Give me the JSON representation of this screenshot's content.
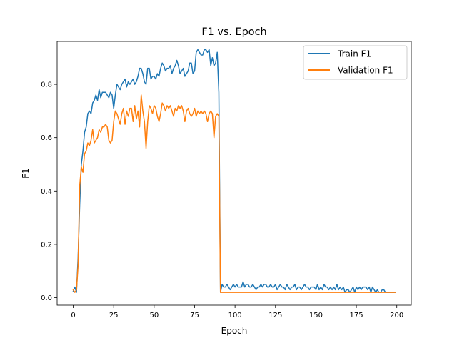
{
  "chart_data": {
    "type": "line",
    "title": "F1 vs. Epoch",
    "xlabel": "Epoch",
    "ylabel": "F1",
    "xlim": [
      -9.95,
      208.95
    ],
    "ylim": [
      -0.028,
      0.961
    ],
    "xticks": [
      0,
      25,
      50,
      75,
      100,
      125,
      150,
      175,
      200
    ],
    "yticks": [
      0.0,
      0.2,
      0.4,
      0.6,
      0.8
    ],
    "ytick_labels": [
      "0.0",
      "0.2",
      "0.4",
      "0.6",
      "0.8"
    ],
    "grid": false,
    "legend_position": "top-right",
    "colors": {
      "train": "#1f77b4",
      "validation": "#ff7f0e"
    },
    "series": [
      {
        "name": "Train F1",
        "points": [
          [
            0,
            0.025
          ],
          [
            1,
            0.04
          ],
          [
            2,
            0.02
          ],
          [
            3,
            0.15
          ],
          [
            4,
            0.35
          ],
          [
            5,
            0.5
          ],
          [
            6,
            0.55
          ],
          [
            7,
            0.62
          ],
          [
            8,
            0.64
          ],
          [
            9,
            0.69
          ],
          [
            10,
            0.7
          ],
          [
            11,
            0.69
          ],
          [
            12,
            0.73
          ],
          [
            13,
            0.74
          ],
          [
            14,
            0.76
          ],
          [
            15,
            0.74
          ],
          [
            16,
            0.78
          ],
          [
            17,
            0.75
          ],
          [
            18,
            0.77
          ],
          [
            19,
            0.77
          ],
          [
            20,
            0.77
          ],
          [
            21,
            0.76
          ],
          [
            22,
            0.75
          ],
          [
            23,
            0.77
          ],
          [
            24,
            0.76
          ],
          [
            25,
            0.71
          ],
          [
            26,
            0.76
          ],
          [
            27,
            0.8
          ],
          [
            28,
            0.79
          ],
          [
            29,
            0.78
          ],
          [
            30,
            0.8
          ],
          [
            31,
            0.81
          ],
          [
            32,
            0.82
          ],
          [
            33,
            0.79
          ],
          [
            34,
            0.81
          ],
          [
            35,
            0.8
          ],
          [
            36,
            0.81
          ],
          [
            37,
            0.82
          ],
          [
            38,
            0.8
          ],
          [
            39,
            0.81
          ],
          [
            40,
            0.83
          ],
          [
            41,
            0.86
          ],
          [
            42,
            0.86
          ],
          [
            43,
            0.84
          ],
          [
            44,
            0.81
          ],
          [
            45,
            0.8
          ],
          [
            46,
            0.86
          ],
          [
            47,
            0.86
          ],
          [
            48,
            0.82
          ],
          [
            49,
            0.83
          ],
          [
            50,
            0.83
          ],
          [
            51,
            0.82
          ],
          [
            52,
            0.84
          ],
          [
            53,
            0.83
          ],
          [
            54,
            0.86
          ],
          [
            55,
            0.88
          ],
          [
            56,
            0.87
          ],
          [
            57,
            0.85
          ],
          [
            58,
            0.86
          ],
          [
            59,
            0.86
          ],
          [
            60,
            0.87
          ],
          [
            61,
            0.84
          ],
          [
            62,
            0.86
          ],
          [
            63,
            0.87
          ],
          [
            64,
            0.89
          ],
          [
            65,
            0.87
          ],
          [
            66,
            0.84
          ],
          [
            67,
            0.85
          ],
          [
            68,
            0.86
          ],
          [
            69,
            0.83
          ],
          [
            70,
            0.84
          ],
          [
            71,
            0.85
          ],
          [
            72,
            0.88
          ],
          [
            73,
            0.88
          ],
          [
            74,
            0.84
          ],
          [
            75,
            0.85
          ],
          [
            76,
            0.92
          ],
          [
            77,
            0.93
          ],
          [
            78,
            0.92
          ],
          [
            79,
            0.91
          ],
          [
            80,
            0.91
          ],
          [
            81,
            0.93
          ],
          [
            82,
            0.93
          ],
          [
            83,
            0.92
          ],
          [
            84,
            0.93
          ],
          [
            85,
            0.87
          ],
          [
            86,
            0.9
          ],
          [
            87,
            0.87
          ],
          [
            88,
            0.88
          ],
          [
            89,
            0.92
          ],
          [
            90,
            0.77
          ],
          [
            91,
            0.02
          ],
          [
            92,
            0.05
          ],
          [
            93,
            0.04
          ],
          [
            94,
            0.04
          ],
          [
            95,
            0.05
          ],
          [
            96,
            0.04
          ],
          [
            97,
            0.03
          ],
          [
            98,
            0.04
          ],
          [
            99,
            0.05
          ],
          [
            100,
            0.04
          ],
          [
            101,
            0.05
          ],
          [
            102,
            0.04
          ],
          [
            103,
            0.04
          ],
          [
            104,
            0.04
          ],
          [
            105,
            0.06
          ],
          [
            106,
            0.04
          ],
          [
            107,
            0.05
          ],
          [
            108,
            0.05
          ],
          [
            109,
            0.04
          ],
          [
            110,
            0.04
          ],
          [
            111,
            0.05
          ],
          [
            112,
            0.04
          ],
          [
            113,
            0.03
          ],
          [
            114,
            0.04
          ],
          [
            115,
            0.04
          ],
          [
            116,
            0.05
          ],
          [
            117,
            0.04
          ],
          [
            118,
            0.05
          ],
          [
            119,
            0.05
          ],
          [
            120,
            0.04
          ],
          [
            121,
            0.04
          ],
          [
            122,
            0.05
          ],
          [
            123,
            0.04
          ],
          [
            124,
            0.04
          ],
          [
            125,
            0.05
          ],
          [
            126,
            0.03
          ],
          [
            127,
            0.04
          ],
          [
            128,
            0.05
          ],
          [
            129,
            0.04
          ],
          [
            130,
            0.04
          ],
          [
            131,
            0.03
          ],
          [
            132,
            0.05
          ],
          [
            133,
            0.04
          ],
          [
            134,
            0.03
          ],
          [
            135,
            0.04
          ],
          [
            136,
            0.04
          ],
          [
            137,
            0.05
          ],
          [
            138,
            0.03
          ],
          [
            139,
            0.04
          ],
          [
            140,
            0.04
          ],
          [
            141,
            0.03
          ],
          [
            142,
            0.04
          ],
          [
            143,
            0.05
          ],
          [
            144,
            0.04
          ],
          [
            145,
            0.04
          ],
          [
            146,
            0.03
          ],
          [
            147,
            0.04
          ],
          [
            148,
            0.04
          ],
          [
            149,
            0.04
          ],
          [
            150,
            0.03
          ],
          [
            151,
            0.05
          ],
          [
            152,
            0.03
          ],
          [
            153,
            0.04
          ],
          [
            154,
            0.03
          ],
          [
            155,
            0.05
          ],
          [
            156,
            0.04
          ],
          [
            157,
            0.04
          ],
          [
            158,
            0.03
          ],
          [
            159,
            0.04
          ],
          [
            160,
            0.03
          ],
          [
            161,
            0.04
          ],
          [
            162,
            0.03
          ],
          [
            163,
            0.05
          ],
          [
            164,
            0.03
          ],
          [
            165,
            0.04
          ],
          [
            166,
            0.03
          ],
          [
            167,
            0.04
          ],
          [
            168,
            0.02
          ],
          [
            169,
            0.03
          ],
          [
            170,
            0.03
          ],
          [
            171,
            0.02
          ],
          [
            172,
            0.03
          ],
          [
            173,
            0.04
          ],
          [
            174,
            0.02
          ],
          [
            175,
            0.04
          ],
          [
            176,
            0.03
          ],
          [
            177,
            0.04
          ],
          [
            178,
            0.03
          ],
          [
            179,
            0.04
          ],
          [
            180,
            0.04
          ],
          [
            181,
            0.04
          ],
          [
            182,
            0.03
          ],
          [
            183,
            0.04
          ],
          [
            184,
            0.02
          ],
          [
            185,
            0.04
          ],
          [
            186,
            0.03
          ],
          [
            187,
            0.02
          ],
          [
            188,
            0.03
          ],
          [
            189,
            0.02
          ],
          [
            190,
            0.02
          ],
          [
            191,
            0.03
          ],
          [
            192,
            0.03
          ],
          [
            193,
            0.02
          ],
          [
            194,
            0.02
          ],
          [
            195,
            0.02
          ],
          [
            196,
            0.02
          ],
          [
            197,
            0.02
          ],
          [
            198,
            0.02
          ],
          [
            199,
            0.02
          ]
        ]
      },
      {
        "name": "Validation F1",
        "points": [
          [
            0,
            0.03
          ],
          [
            1,
            0.02
          ],
          [
            2,
            0.03
          ],
          [
            3,
            0.12
          ],
          [
            4,
            0.42
          ],
          [
            5,
            0.49
          ],
          [
            6,
            0.47
          ],
          [
            7,
            0.54
          ],
          [
            8,
            0.55
          ],
          [
            9,
            0.58
          ],
          [
            10,
            0.57
          ],
          [
            11,
            0.59
          ],
          [
            12,
            0.63
          ],
          [
            13,
            0.58
          ],
          [
            14,
            0.59
          ],
          [
            15,
            0.6
          ],
          [
            16,
            0.63
          ],
          [
            17,
            0.62
          ],
          [
            18,
            0.64
          ],
          [
            19,
            0.64
          ],
          [
            20,
            0.65
          ],
          [
            21,
            0.64
          ],
          [
            22,
            0.59
          ],
          [
            23,
            0.58
          ],
          [
            24,
            0.59
          ],
          [
            25,
            0.66
          ],
          [
            26,
            0.7
          ],
          [
            27,
            0.69
          ],
          [
            28,
            0.67
          ],
          [
            29,
            0.65
          ],
          [
            30,
            0.69
          ],
          [
            31,
            0.71
          ],
          [
            32,
            0.65
          ],
          [
            33,
            0.7
          ],
          [
            34,
            0.68
          ],
          [
            35,
            0.71
          ],
          [
            36,
            0.71
          ],
          [
            37,
            0.66
          ],
          [
            38,
            0.72
          ],
          [
            39,
            0.67
          ],
          [
            40,
            0.7
          ],
          [
            41,
            0.64
          ],
          [
            42,
            0.76
          ],
          [
            43,
            0.7
          ],
          [
            44,
            0.66
          ],
          [
            45,
            0.56
          ],
          [
            46,
            0.66
          ],
          [
            47,
            0.72
          ],
          [
            48,
            0.71
          ],
          [
            49,
            0.69
          ],
          [
            50,
            0.72
          ],
          [
            51,
            0.71
          ],
          [
            52,
            0.68
          ],
          [
            53,
            0.66
          ],
          [
            54,
            0.69
          ],
          [
            55,
            0.73
          ],
          [
            56,
            0.72
          ],
          [
            57,
            0.7
          ],
          [
            58,
            0.72
          ],
          [
            59,
            0.71
          ],
          [
            60,
            0.72
          ],
          [
            61,
            0.7
          ],
          [
            62,
            0.68
          ],
          [
            63,
            0.71
          ],
          [
            64,
            0.7
          ],
          [
            65,
            0.72
          ],
          [
            66,
            0.71
          ],
          [
            67,
            0.72
          ],
          [
            68,
            0.7
          ],
          [
            69,
            0.66
          ],
          [
            70,
            0.7
          ],
          [
            71,
            0.71
          ],
          [
            72,
            0.69
          ],
          [
            73,
            0.68
          ],
          [
            74,
            0.69
          ],
          [
            75,
            0.71
          ],
          [
            76,
            0.68
          ],
          [
            77,
            0.7
          ],
          [
            78,
            0.69
          ],
          [
            79,
            0.7
          ],
          [
            80,
            0.69
          ],
          [
            81,
            0.7
          ],
          [
            82,
            0.69
          ],
          [
            83,
            0.66
          ],
          [
            84,
            0.69
          ],
          [
            85,
            0.7
          ],
          [
            86,
            0.69
          ],
          [
            87,
            0.6
          ],
          [
            88,
            0.68
          ],
          [
            89,
            0.69
          ],
          [
            90,
            0.68
          ],
          [
            91,
            0.02
          ],
          [
            95,
            0.02
          ],
          [
            100,
            0.02
          ],
          [
            110,
            0.02
          ],
          [
            120,
            0.02
          ],
          [
            130,
            0.02
          ],
          [
            140,
            0.02
          ],
          [
            150,
            0.02
          ],
          [
            160,
            0.02
          ],
          [
            170,
            0.02
          ],
          [
            180,
            0.02
          ],
          [
            190,
            0.02
          ],
          [
            199,
            0.02
          ]
        ]
      }
    ]
  }
}
